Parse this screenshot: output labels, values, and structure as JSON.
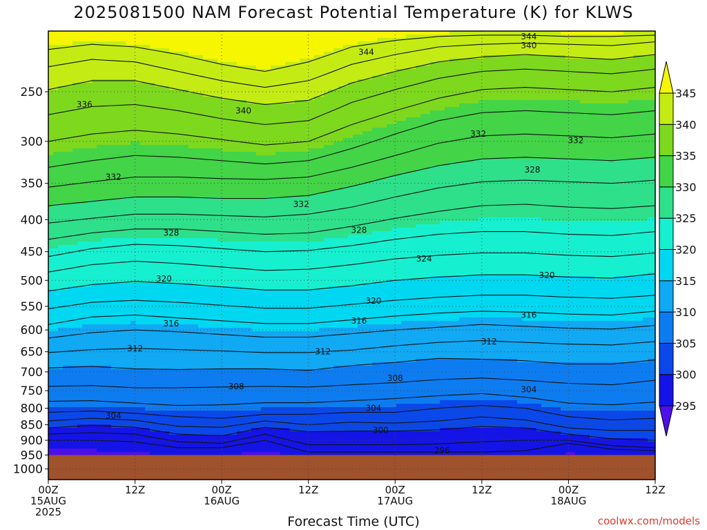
{
  "page": {
    "title": "2025081500 NAM Forecast Potential Temperature (K) for KLWS",
    "xlabel": "Forecast Time (UTC)",
    "credit": "coolwx.com/models"
  },
  "chart_data": {
    "type": "heatmap",
    "title": "2025081500 NAM Forecast Potential Temperature (K) for KLWS",
    "xlabel": "Forecast Time (UTC)",
    "ylabel": "",
    "x_range_hours": [
      0,
      84
    ],
    "y_scale": "log-pressure",
    "y_range_hpa": [
      200,
      1040
    ],
    "grid": true,
    "surface_pressure_hpa": 950,
    "x_ticks": [
      {
        "hour": 0,
        "lines": [
          "00Z",
          "15AUG",
          "2025"
        ]
      },
      {
        "hour": 12,
        "lines": [
          "12Z"
        ]
      },
      {
        "hour": 24,
        "lines": [
          "00Z",
          "16AUG"
        ]
      },
      {
        "hour": 36,
        "lines": [
          "12Z"
        ]
      },
      {
        "hour": 48,
        "lines": [
          "00Z",
          "17AUG"
        ]
      },
      {
        "hour": 60,
        "lines": [
          "12Z"
        ]
      },
      {
        "hour": 72,
        "lines": [
          "00Z",
          "18AUG"
        ]
      },
      {
        "hour": 84,
        "lines": [
          "12Z"
        ]
      }
    ],
    "y_ticks": [
      250,
      300,
      350,
      400,
      450,
      500,
      550,
      600,
      650,
      700,
      750,
      800,
      850,
      900,
      950,
      1000
    ],
    "colorbar": {
      "levels": [
        295,
        300,
        305,
        310,
        315,
        320,
        325,
        330,
        335,
        340,
        345
      ],
      "colors": [
        "#4d10e8",
        "#1414e6",
        "#0a48ea",
        "#0d7cf0",
        "#11a8f4",
        "#00d8f2",
        "#16f0d0",
        "#2ee08a",
        "#43d448",
        "#7ed81e",
        "#c4ec14",
        "#f6f600"
      ]
    },
    "isentropes_K": [
      {
        "theta": 296,
        "p": [
          900,
          900,
          905,
          925,
          925,
          900,
          940,
          940,
          940,
          940,
          940,
          935,
          910,
          930,
          935
        ]
      },
      {
        "theta": 298,
        "p": [
          880,
          875,
          880,
          905,
          910,
          880,
          915,
          915,
          915,
          912,
          905,
          900,
          900,
          918,
          925
        ]
      },
      {
        "theta": 300,
        "p": [
          860,
          852,
          858,
          880,
          885,
          858,
          872,
          870,
          870,
          866,
          855,
          860,
          880,
          895,
          900
        ]
      },
      {
        "theta": 302,
        "p": [
          838,
          830,
          836,
          855,
          858,
          838,
          850,
          842,
          845,
          838,
          826,
          835,
          860,
          868,
          868
        ]
      },
      {
        "theta": 304,
        "p": [
          812,
          808,
          815,
          825,
          830,
          818,
          818,
          812,
          812,
          800,
          792,
          800,
          825,
          835,
          830
        ]
      },
      {
        "theta": 306,
        "p": [
          780,
          778,
          785,
          792,
          790,
          784,
          784,
          778,
          772,
          764,
          758,
          768,
          785,
          790,
          782
        ]
      },
      {
        "theta": 308,
        "p": [
          738,
          736,
          742,
          742,
          740,
          738,
          740,
          734,
          728,
          720,
          716,
          722,
          730,
          734,
          722
        ]
      },
      {
        "theta": 310,
        "p": [
          690,
          686,
          692,
          694,
          692,
          692,
          696,
          684,
          676,
          666,
          668,
          672,
          680,
          680,
          670
        ]
      },
      {
        "theta": 312,
        "p": [
          652,
          645,
          642,
          645,
          648,
          652,
          652,
          646,
          636,
          628,
          624,
          628,
          632,
          634,
          626
        ]
      },
      {
        "theta": 314,
        "p": [
          618,
          606,
          600,
          604,
          610,
          616,
          616,
          608,
          600,
          594,
          588,
          592,
          596,
          598,
          590
        ]
      },
      {
        "theta": 316,
        "p": [
          588,
          572,
          568,
          574,
          580,
          586,
          586,
          578,
          570,
          564,
          560,
          562,
          566,
          568,
          560
        ]
      },
      {
        "theta": 318,
        "p": [
          555,
          542,
          538,
          542,
          548,
          554,
          554,
          546,
          538,
          532,
          528,
          528,
          532,
          534,
          528
        ]
      },
      {
        "theta": 320,
        "p": [
          520,
          508,
          502,
          506,
          512,
          518,
          518,
          510,
          500,
          494,
          490,
          490,
          494,
          496,
          488
        ]
      },
      {
        "theta": 322,
        "p": [
          485,
          472,
          466,
          470,
          476,
          482,
          480,
          472,
          462,
          456,
          452,
          452,
          456,
          458,
          452
        ]
      },
      {
        "theta": 324,
        "p": [
          458,
          445,
          438,
          440,
          445,
          450,
          448,
          440,
          430,
          422,
          418,
          418,
          422,
          424,
          418
        ]
      },
      {
        "theta": 326,
        "p": [
          430,
          420,
          414,
          414,
          418,
          422,
          420,
          410,
          398,
          388,
          380,
          378,
          382,
          384,
          380
        ]
      },
      {
        "theta": 328,
        "p": [
          405,
          398,
          392,
          392,
          394,
          396,
          392,
          382,
          368,
          356,
          348,
          346,
          348,
          350,
          346
        ]
      },
      {
        "theta": 330,
        "p": [
          380,
          374,
          368,
          368,
          370,
          370,
          366,
          354,
          340,
          328,
          320,
          318,
          320,
          322,
          318
        ]
      },
      {
        "theta": 332,
        "p": [
          355,
          348,
          342,
          342,
          344,
          345,
          342,
          330,
          316,
          302,
          294,
          292,
          294,
          296,
          292
        ]
      },
      {
        "theta": 334,
        "p": [
          330,
          322,
          316,
          318,
          322,
          326,
          322,
          308,
          292,
          278,
          270,
          268,
          270,
          272,
          268
        ]
      },
      {
        "theta": 336,
        "p": [
          300,
          292,
          288,
          292,
          298,
          304,
          300,
          282,
          268,
          256,
          248,
          246,
          248,
          250,
          246
        ]
      },
      {
        "theta": 338,
        "p": [
          272,
          264,
          262,
          268,
          276,
          282,
          278,
          260,
          248,
          238,
          232,
          230,
          232,
          234,
          230
        ]
      },
      {
        "theta": 340,
        "p": [
          248,
          240,
          240,
          248,
          256,
          262,
          258,
          242,
          232,
          224,
          220,
          218,
          220,
          222,
          218
        ]
      },
      {
        "theta": 342,
        "p": [
          228,
          222,
          224,
          232,
          240,
          246,
          240,
          226,
          218,
          212,
          210,
          209,
          210,
          211,
          208
        ]
      },
      {
        "theta": 344,
        "p": [
          214,
          210,
          212,
          218,
          226,
          232,
          224,
          212,
          207,
          204,
          203,
          203,
          204,
          204,
          203
        ]
      }
    ],
    "contour_labels": [
      {
        "text": "344",
        "hour": 44,
        "p": 216
      },
      {
        "text": "344",
        "hour": 66.5,
        "p": 204
      },
      {
        "text": "340",
        "hour": 66.5,
        "p": 211
      },
      {
        "text": "336",
        "hour": 5,
        "p": 262
      },
      {
        "text": "340",
        "hour": 27,
        "p": 268
      },
      {
        "text": "332",
        "hour": 59.5,
        "p": 292
      },
      {
        "text": "332",
        "hour": 73,
        "p": 299
      },
      {
        "text": "332",
        "hour": 9,
        "p": 342
      },
      {
        "text": "328",
        "hour": 67,
        "p": 333
      },
      {
        "text": "332",
        "hour": 35,
        "p": 378
      },
      {
        "text": "328",
        "hour": 17,
        "p": 420
      },
      {
        "text": "328",
        "hour": 43,
        "p": 416
      },
      {
        "text": "324",
        "hour": 52,
        "p": 462
      },
      {
        "text": "320",
        "hour": 16,
        "p": 497
      },
      {
        "text": "320",
        "hour": 69,
        "p": 491
      },
      {
        "text": "320",
        "hour": 45,
        "p": 539
      },
      {
        "text": "316",
        "hour": 17,
        "p": 586
      },
      {
        "text": "316",
        "hour": 43,
        "p": 580
      },
      {
        "text": "316",
        "hour": 66.5,
        "p": 568
      },
      {
        "text": "312",
        "hour": 12,
        "p": 642
      },
      {
        "text": "312",
        "hour": 38,
        "p": 650
      },
      {
        "text": "312",
        "hour": 61,
        "p": 626
      },
      {
        "text": "308",
        "hour": 26,
        "p": 738
      },
      {
        "text": "308",
        "hour": 48,
        "p": 716
      },
      {
        "text": "304",
        "hour": 9,
        "p": 822
      },
      {
        "text": "304",
        "hour": 45,
        "p": 800
      },
      {
        "text": "304",
        "hour": 66.5,
        "p": 747
      },
      {
        "text": "300",
        "hour": 46,
        "p": 868
      },
      {
        "text": "296",
        "hour": 54.5,
        "p": 935
      }
    ]
  }
}
